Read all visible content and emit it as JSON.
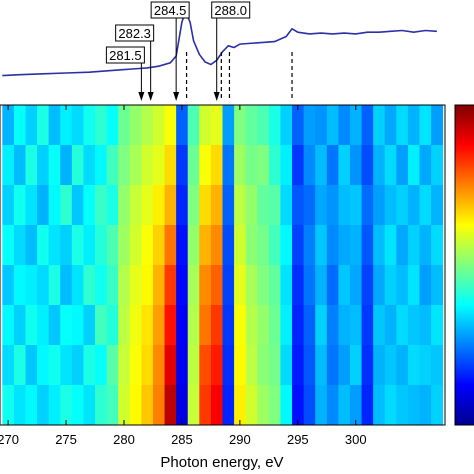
{
  "chart_data": [
    {
      "type": "line",
      "color": "#2b2fa8",
      "xlim": [
        269.3,
        307.7
      ],
      "ylim": [
        0,
        100
      ],
      "x": [
        269.5,
        271,
        273,
        275,
        277,
        279,
        280,
        281,
        282,
        283,
        284,
        284.5,
        285,
        285.3,
        285.7,
        286,
        286.5,
        287,
        287.5,
        288,
        288.5,
        289,
        289.5,
        290,
        291,
        292,
        293,
        294,
        294.5,
        295,
        296,
        297,
        298,
        299,
        300,
        301,
        302,
        303,
        304,
        305,
        306,
        307
      ],
      "values": [
        17,
        18,
        19,
        20,
        21,
        23,
        24,
        25,
        26,
        28,
        32,
        40,
        80,
        92,
        80,
        58,
        42,
        33,
        30,
        35,
        45,
        52,
        50,
        54,
        55,
        56,
        57,
        63,
        72,
        68,
        66,
        67,
        66,
        67,
        66,
        68,
        68,
        69,
        70,
        68,
        70,
        69
      ],
      "annotations": [
        {
          "label": "281.5",
          "x": 281.5
        },
        {
          "label": "282.3",
          "x": 282.3
        },
        {
          "label": "284.5",
          "x": 284.5
        },
        {
          "label": "288.0",
          "x": 288.0
        }
      ],
      "markers": [
        285.4,
        288.4,
        289.1,
        294.5
      ]
    },
    {
      "type": "heatmap",
      "xlabel": "Photon energy, eV",
      "xlim": [
        269.3,
        307.7
      ],
      "xticks": [
        270,
        275,
        280,
        285,
        290,
        295,
        300
      ],
      "clim": [
        0,
        1
      ],
      "x": [
        270,
        271,
        272,
        273,
        274,
        275,
        276,
        277,
        278,
        279,
        280,
        281,
        282,
        283,
        284,
        285,
        286,
        287,
        288,
        289,
        290,
        291,
        292,
        293,
        294,
        295,
        296,
        297,
        298,
        299,
        300,
        301,
        302,
        303,
        304,
        305,
        306,
        307
      ],
      "z": [
        [
          0.3,
          0.38,
          0.33,
          0.4,
          0.31,
          0.36,
          0.34,
          0.39,
          0.42,
          0.38,
          0.48,
          0.52,
          0.55,
          0.58,
          0.62,
          0.22,
          0.45,
          0.58,
          0.6,
          0.28,
          0.5,
          0.47,
          0.45,
          0.4,
          0.33,
          0.22,
          0.28,
          0.27,
          0.31,
          0.26,
          0.3,
          0.22,
          0.33,
          0.29,
          0.34,
          0.3,
          0.35,
          0.28
        ],
        [
          0.36,
          0.31,
          0.4,
          0.33,
          0.38,
          0.3,
          0.41,
          0.34,
          0.37,
          0.44,
          0.5,
          0.54,
          0.58,
          0.6,
          0.66,
          0.18,
          0.48,
          0.62,
          0.66,
          0.24,
          0.53,
          0.49,
          0.5,
          0.42,
          0.36,
          0.18,
          0.26,
          0.31,
          0.24,
          0.33,
          0.27,
          0.2,
          0.3,
          0.34,
          0.28,
          0.36,
          0.29,
          0.33
        ],
        [
          0.33,
          0.39,
          0.35,
          0.3,
          0.37,
          0.42,
          0.32,
          0.38,
          0.43,
          0.4,
          0.52,
          0.57,
          0.6,
          0.64,
          0.7,
          0.16,
          0.5,
          0.66,
          0.7,
          0.22,
          0.56,
          0.52,
          0.47,
          0.46,
          0.34,
          0.21,
          0.23,
          0.29,
          0.27,
          0.31,
          0.32,
          0.23,
          0.28,
          0.31,
          0.33,
          0.3,
          0.34,
          0.3
        ],
        [
          0.38,
          0.34,
          0.31,
          0.39,
          0.35,
          0.33,
          0.4,
          0.36,
          0.41,
          0.45,
          0.53,
          0.58,
          0.62,
          0.67,
          0.76,
          0.14,
          0.52,
          0.7,
          0.74,
          0.2,
          0.58,
          0.51,
          0.49,
          0.44,
          0.37,
          0.19,
          0.25,
          0.32,
          0.26,
          0.29,
          0.3,
          0.21,
          0.31,
          0.35,
          0.29,
          0.33,
          0.3,
          0.34
        ],
        [
          0.32,
          0.37,
          0.36,
          0.34,
          0.4,
          0.31,
          0.35,
          0.42,
          0.39,
          0.43,
          0.55,
          0.6,
          0.63,
          0.7,
          0.82,
          0.13,
          0.54,
          0.74,
          0.78,
          0.19,
          0.6,
          0.54,
          0.5,
          0.47,
          0.35,
          0.17,
          0.24,
          0.3,
          0.23,
          0.32,
          0.29,
          0.19,
          0.29,
          0.33,
          0.31,
          0.35,
          0.28,
          0.31
        ],
        [
          0.37,
          0.33,
          0.39,
          0.36,
          0.32,
          0.38,
          0.37,
          0.33,
          0.44,
          0.41,
          0.56,
          0.61,
          0.65,
          0.72,
          0.86,
          0.12,
          0.55,
          0.76,
          0.82,
          0.18,
          0.62,
          0.55,
          0.52,
          0.48,
          0.36,
          0.16,
          0.22,
          0.33,
          0.25,
          0.3,
          0.31,
          0.18,
          0.32,
          0.3,
          0.34,
          0.32,
          0.31,
          0.35
        ],
        [
          0.34,
          0.4,
          0.32,
          0.37,
          0.39,
          0.35,
          0.33,
          0.4,
          0.38,
          0.46,
          0.57,
          0.62,
          0.66,
          0.74,
          0.9,
          0.11,
          0.56,
          0.8,
          0.85,
          0.17,
          0.63,
          0.56,
          0.51,
          0.49,
          0.34,
          0.15,
          0.21,
          0.31,
          0.24,
          0.28,
          0.33,
          0.17,
          0.3,
          0.32,
          0.3,
          0.34,
          0.33,
          0.32
        ],
        [
          0.39,
          0.35,
          0.37,
          0.33,
          0.36,
          0.4,
          0.38,
          0.35,
          0.42,
          0.44,
          0.58,
          0.63,
          0.68,
          0.75,
          0.94,
          0.1,
          0.57,
          0.82,
          0.88,
          0.16,
          0.64,
          0.58,
          0.53,
          0.5,
          0.37,
          0.14,
          0.2,
          0.3,
          0.26,
          0.31,
          0.28,
          0.16,
          0.31,
          0.34,
          0.32,
          0.31,
          0.3,
          0.33
        ]
      ]
    }
  ]
}
